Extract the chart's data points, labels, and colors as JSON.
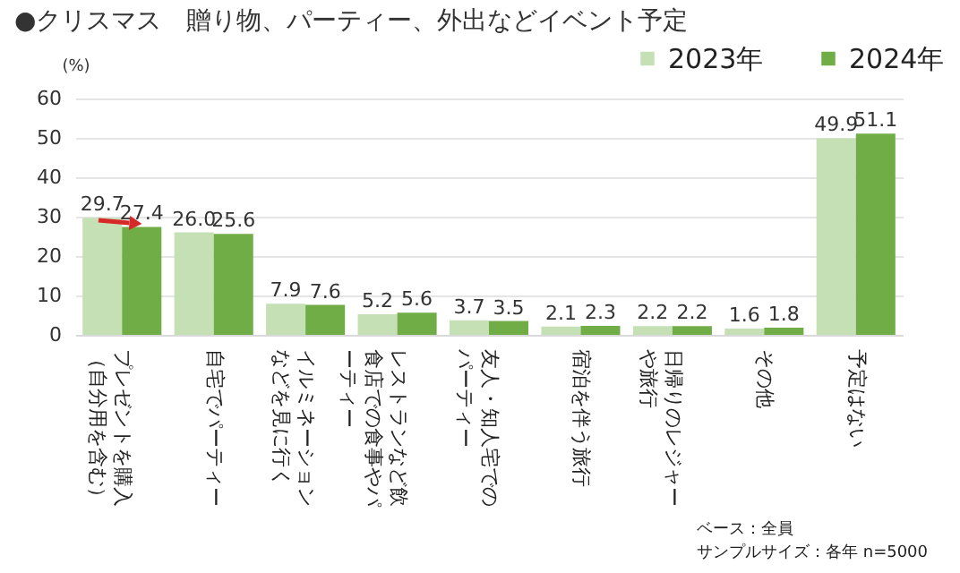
{
  "chart_data": {
    "type": "bar",
    "title": "●クリスマス　贈り物、パーティー、外出などイベント予定",
    "ylabel": "(%)",
    "categories": [
      "プレゼントを購入（自分用を含む）",
      "自宅でパーティー",
      "イルミネーションなどを見に行く",
      "レストランなど飲食店での食事やパーティー",
      "友人・知人宅でのパーティー",
      "宿泊を伴う旅行",
      "日帰りのレジャーや旅行",
      "その他",
      "予定はない"
    ],
    "series": [
      {
        "name": "2023年",
        "color": "#c5e0b4",
        "values": [
          29.7,
          26.0,
          7.9,
          5.2,
          3.7,
          2.1,
          2.2,
          1.6,
          49.9
        ]
      },
      {
        "name": "2024年",
        "color": "#70ad47",
        "values": [
          27.4,
          25.6,
          7.6,
          5.6,
          3.5,
          2.3,
          2.2,
          1.8,
          51.1
        ]
      }
    ],
    "value_labels": [
      [
        "29.7",
        "26.0",
        "7.9",
        "5.2",
        "3.7",
        "2.1",
        "2.2",
        "1.6",
        "49.9"
      ],
      [
        "27.4",
        "25.6",
        "7.6",
        "5.6",
        "3.5",
        "2.3",
        "2.2",
        "1.8",
        "51.1"
      ]
    ],
    "ylim": [
      0,
      60
    ],
    "yticks": [
      0,
      10,
      20,
      30,
      40,
      50,
      60
    ],
    "grid": "y",
    "legend": "top right",
    "annotations": [
      "ベース：全員",
      "サンプルサイズ：各年 n=5000"
    ]
  }
}
